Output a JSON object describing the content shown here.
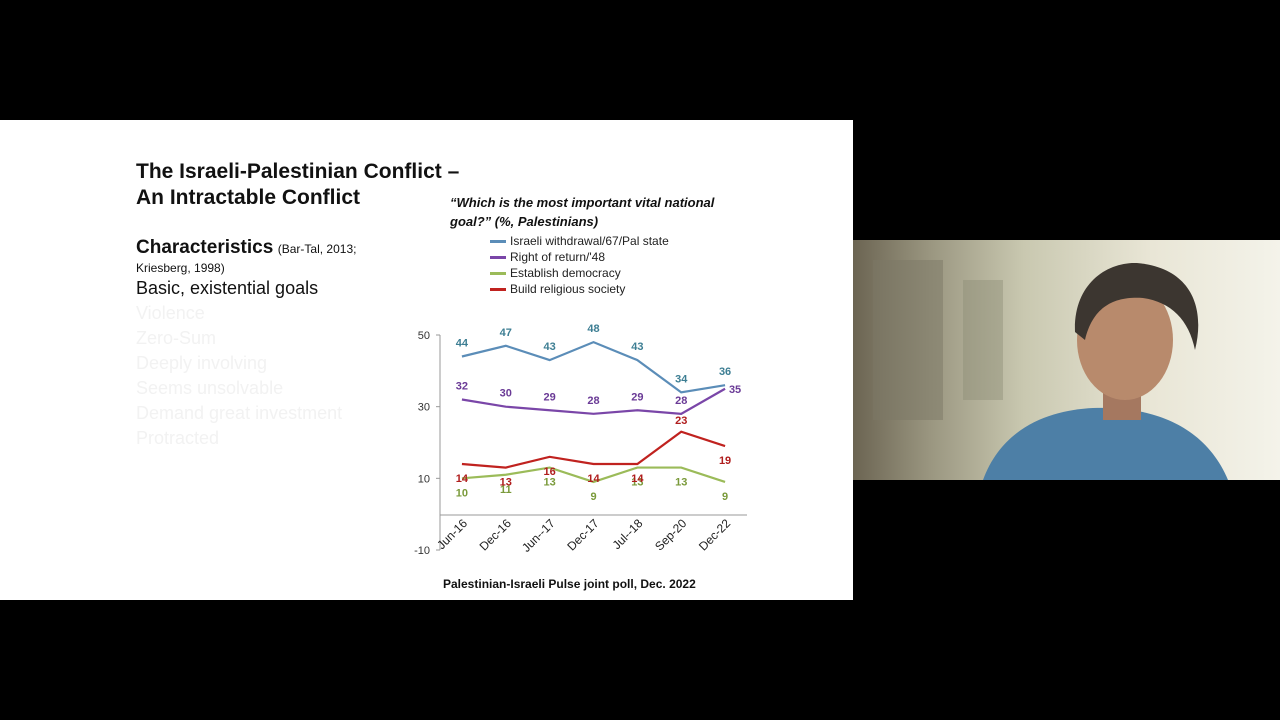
{
  "slide": {
    "title_line1": "The Israeli-Palestinian Conflict –",
    "title_line2": "An Intractable Conflict",
    "characteristics_label": "Characteristics",
    "characteristics_citation": "(Bar-Tal, 2013; Kriesberg, 1998)",
    "bullets": [
      "Basic, existential goals",
      "Violence",
      "Zero-Sum",
      "Deeply involving",
      "Seems unsolvable",
      "Demand great investment",
      "Protracted"
    ],
    "question": "“Which is the most important vital national goal?” (%, Palestinians)",
    "source": "Palestinian-Israeli Pulse joint poll, Dec. 2022"
  },
  "chart_data": {
    "type": "line",
    "categories": [
      "Jun-16",
      "Dec-16",
      "Jun--17",
      "Dec-17",
      "Jul--18",
      "Sep-20",
      "Dec-22"
    ],
    "series": [
      {
        "name": "Israeli withdrawal/67/Pal state",
        "color": "#5b8db8",
        "label_color": "#3d7e93",
        "values": [
          44,
          47,
          43,
          48,
          43,
          34,
          36
        ]
      },
      {
        "name": "Right of return/'48",
        "color": "#7a46a8",
        "label_color": "#6a3a96",
        "values": [
          32,
          30,
          29,
          28,
          29,
          28,
          35
        ]
      },
      {
        "name": "Establish democracy",
        "color": "#9bbb59",
        "label_color": "#7a9a3a",
        "values": [
          10,
          11,
          13,
          9,
          13,
          13,
          9
        ]
      },
      {
        "name": "Build religious society",
        "color": "#c0221f",
        "label_color": "#b01d1d",
        "values": [
          14,
          13,
          16,
          14,
          14,
          23,
          19
        ]
      }
    ],
    "yticks": [
      50,
      30,
      10,
      -10
    ],
    "ylim": [
      -10,
      50
    ],
    "grid": false,
    "legend_position": "top"
  }
}
